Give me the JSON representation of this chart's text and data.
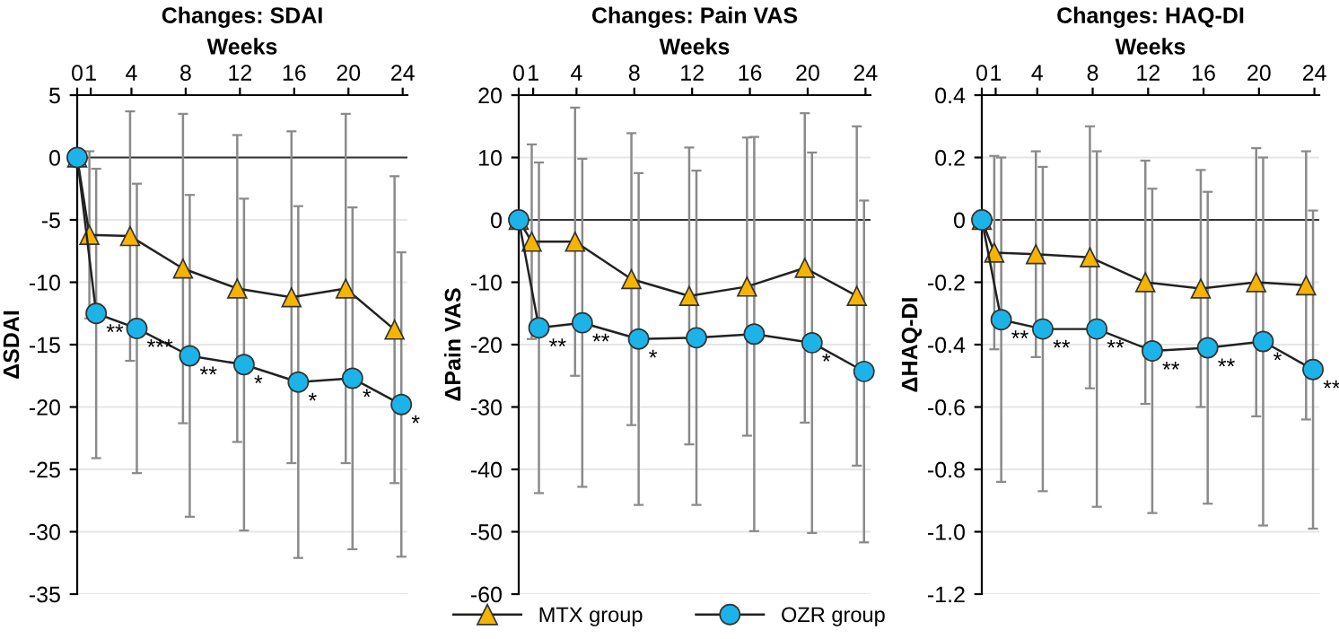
{
  "chart_data": [
    {
      "type": "line",
      "title": "Changes: SDAI",
      "xlabel": "Weeks",
      "ylabel": "ΔSDAI",
      "xlim": [
        0,
        24.35
      ],
      "xticks": [
        0,
        1,
        4,
        8,
        12,
        16,
        20,
        24
      ],
      "ylim": [
        -35,
        5
      ],
      "yticks": [
        -35,
        -30,
        -25,
        -20,
        -15,
        -10,
        -5,
        0,
        5
      ],
      "grid": "y",
      "ref_lines": [
        {
          "axis": "y",
          "value": 0,
          "color": "#333333"
        }
      ],
      "series": [
        {
          "color": "#f5b400",
          "marker": "triangle",
          "x": [
            0,
            0.9,
            3.9,
            7.8,
            11.8,
            15.8,
            19.8,
            23.4
          ],
          "values": [
            0,
            -6.2,
            -6.3,
            -8.9,
            -10.5,
            -11.2,
            -10.5,
            -13.8
          ],
          "errors": [
            null,
            6.7,
            10,
            12.4,
            12.3,
            13.3,
            14,
            12.3
          ]
        },
        {
          "color": "#1cb4e8",
          "marker": "circle",
          "x": [
            0,
            1.4,
            4.4,
            8.3,
            12.3,
            16.3,
            20.3,
            23.9
          ],
          "values": [
            0,
            -12.5,
            -13.7,
            -15.9,
            -16.6,
            -18.0,
            -17.7,
            -19.8
          ],
          "errors": [
            null,
            11.6,
            11.6,
            12.9,
            13.3,
            14.1,
            13.7,
            12.2
          ]
        }
      ],
      "annotations": [
        {
          "text": "**",
          "x": 1.4,
          "y": -12.5
        },
        {
          "text": "***",
          "x": 4.4,
          "y": -13.7
        },
        {
          "text": "**",
          "x": 8.3,
          "y": -15.9
        },
        {
          "text": "*",
          "x": 12.3,
          "y": -16.6
        },
        {
          "text": "*",
          "x": 16.3,
          "y": -18.0
        },
        {
          "text": "*",
          "x": 20.3,
          "y": -17.7
        },
        {
          "text": "*",
          "x": 23.9,
          "y": -19.8
        }
      ]
    },
    {
      "type": "line",
      "title": "Changes: Pain VAS",
      "xlabel": "Weeks",
      "ylabel": "ΔPain VAS",
      "xlim": [
        0,
        24.35
      ],
      "xticks": [
        0,
        1,
        4,
        8,
        12,
        16,
        20,
        24
      ],
      "ylim": [
        -60,
        20
      ],
      "yticks": [
        -60,
        -50,
        -40,
        -30,
        -20,
        -10,
        0,
        10,
        20
      ],
      "grid": "y",
      "legend": "bottom",
      "ref_lines": [
        {
          "axis": "y",
          "value": 0,
          "color": "#333333"
        }
      ],
      "series": [
        {
          "name": "MTX group",
          "color": "#f5b400",
          "marker": "triangle",
          "x": [
            0,
            0.9,
            3.9,
            7.8,
            11.8,
            15.8,
            19.8,
            23.4
          ],
          "values": [
            0,
            -3.5,
            -3.5,
            -9.5,
            -12.2,
            -10.7,
            -7.7,
            -12.2
          ],
          "errors": [
            null,
            15.6,
            21.5,
            23.4,
            23.8,
            23.9,
            24.8,
            27.2
          ]
        },
        {
          "name": "OZR group",
          "color": "#1cb4e8",
          "marker": "circle",
          "x": [
            0,
            1.4,
            4.4,
            8.3,
            12.3,
            16.3,
            20.3,
            23.9
          ],
          "values": [
            0,
            -17.3,
            -16.5,
            -19.1,
            -18.9,
            -18.3,
            -19.7,
            -24.3
          ],
          "errors": [
            null,
            26.5,
            26.3,
            26.6,
            26.8,
            31.6,
            30.5,
            27.4
          ]
        }
      ],
      "annotations": [
        {
          "text": "**",
          "x": 1.4,
          "y": -17.3
        },
        {
          "text": "**",
          "x": 4.4,
          "y": -16.5
        },
        {
          "text": "*",
          "x": 8.3,
          "y": -19.1
        },
        {
          "text": "*",
          "x": 20.3,
          "y": -19.7
        }
      ]
    },
    {
      "type": "line",
      "title": "Changes: HAQ-DI",
      "xlabel": "Weeks",
      "ylabel": "ΔHAQ-DI",
      "xlim": [
        0,
        24.35
      ],
      "xticks": [
        0,
        1,
        4,
        8,
        12,
        16,
        20,
        24
      ],
      "ylim": [
        -1.2,
        0.4
      ],
      "yticks": [
        {
          "value": -1.2,
          "label": "-1.2"
        },
        {
          "value": -1.0,
          "label": "-1.0"
        },
        {
          "value": -0.8,
          "label": "-0.8"
        },
        {
          "value": -0.6,
          "label": "-0.6"
        },
        {
          "value": -0.4,
          "label": "-0.4"
        },
        {
          "value": -0.2,
          "label": "-0.2"
        },
        0,
        0.2,
        0.4
      ],
      "grid": "y",
      "ref_lines": [
        {
          "axis": "y",
          "value": 0,
          "color": "#333333"
        }
      ],
      "series": [
        {
          "color": "#f5b400",
          "marker": "triangle",
          "x": [
            0,
            0.9,
            3.9,
            7.8,
            11.8,
            15.8,
            19.8,
            23.4
          ],
          "values": [
            0,
            -0.105,
            -0.11,
            -0.12,
            -0.2,
            -0.22,
            -0.2,
            -0.21
          ],
          "errors": [
            null,
            0.31,
            0.33,
            0.42,
            0.39,
            0.38,
            0.43,
            0.43
          ]
        },
        {
          "color": "#1cb4e8",
          "marker": "circle",
          "x": [
            0,
            1.4,
            4.4,
            8.3,
            12.3,
            16.3,
            20.3,
            23.9
          ],
          "values": [
            0,
            -0.32,
            -0.35,
            -0.35,
            -0.42,
            -0.41,
            -0.39,
            -0.48
          ],
          "errors": [
            null,
            0.52,
            0.52,
            0.57,
            0.52,
            0.5,
            0.59,
            0.51
          ]
        }
      ],
      "annotations": [
        {
          "text": "**",
          "x": 1.4,
          "y": -0.32
        },
        {
          "text": "**",
          "x": 4.4,
          "y": -0.35
        },
        {
          "text": "**",
          "x": 8.3,
          "y": -0.35
        },
        {
          "text": "**",
          "x": 12.3,
          "y": -0.42
        },
        {
          "text": "**",
          "x": 16.3,
          "y": -0.41
        },
        {
          "text": "*",
          "x": 20.3,
          "y": -0.39
        },
        {
          "text": "**",
          "x": 23.9,
          "y": -0.48
        }
      ]
    }
  ]
}
